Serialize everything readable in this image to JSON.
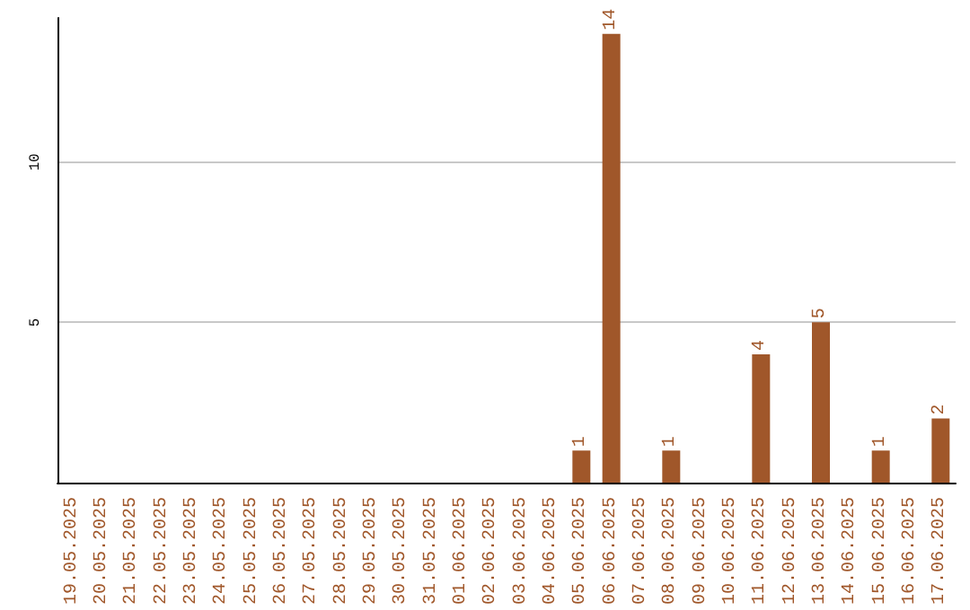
{
  "chart_data": {
    "type": "bar",
    "categories": [
      "19.05.2025",
      "20.05.2025",
      "21.05.2025",
      "22.05.2025",
      "23.05.2025",
      "24.05.2025",
      "25.05.2025",
      "26.05.2025",
      "27.05.2025",
      "28.05.2025",
      "29.05.2025",
      "30.05.2025",
      "31.05.2025",
      "01.06.2025",
      "02.06.2025",
      "03.06.2025",
      "04.06.2025",
      "05.06.2025",
      "06.06.2025",
      "07.06.2025",
      "08.06.2025",
      "09.06.2025",
      "10.06.2025",
      "11.06.2025",
      "12.06.2025",
      "13.06.2025",
      "14.06.2025",
      "15.06.2025",
      "16.06.2025",
      "17.06.2025"
    ],
    "values": [
      0,
      0,
      0,
      0,
      0,
      0,
      0,
      0,
      0,
      0,
      0,
      0,
      0,
      0,
      0,
      0,
      0,
      1,
      14,
      0,
      1,
      0,
      0,
      4,
      0,
      5,
      0,
      1,
      0,
      2
    ],
    "value_labels": [
      null,
      null,
      null,
      null,
      null,
      null,
      null,
      null,
      null,
      null,
      null,
      null,
      null,
      null,
      null,
      null,
      null,
      "1",
      "14",
      null,
      "1",
      null,
      null,
      "4",
      null,
      "5",
      null,
      "1",
      null,
      "2"
    ],
    "color": "#a0572a",
    "ylim": [
      0,
      14.5
    ],
    "yticks": [
      5,
      10
    ],
    "grid": "y"
  }
}
